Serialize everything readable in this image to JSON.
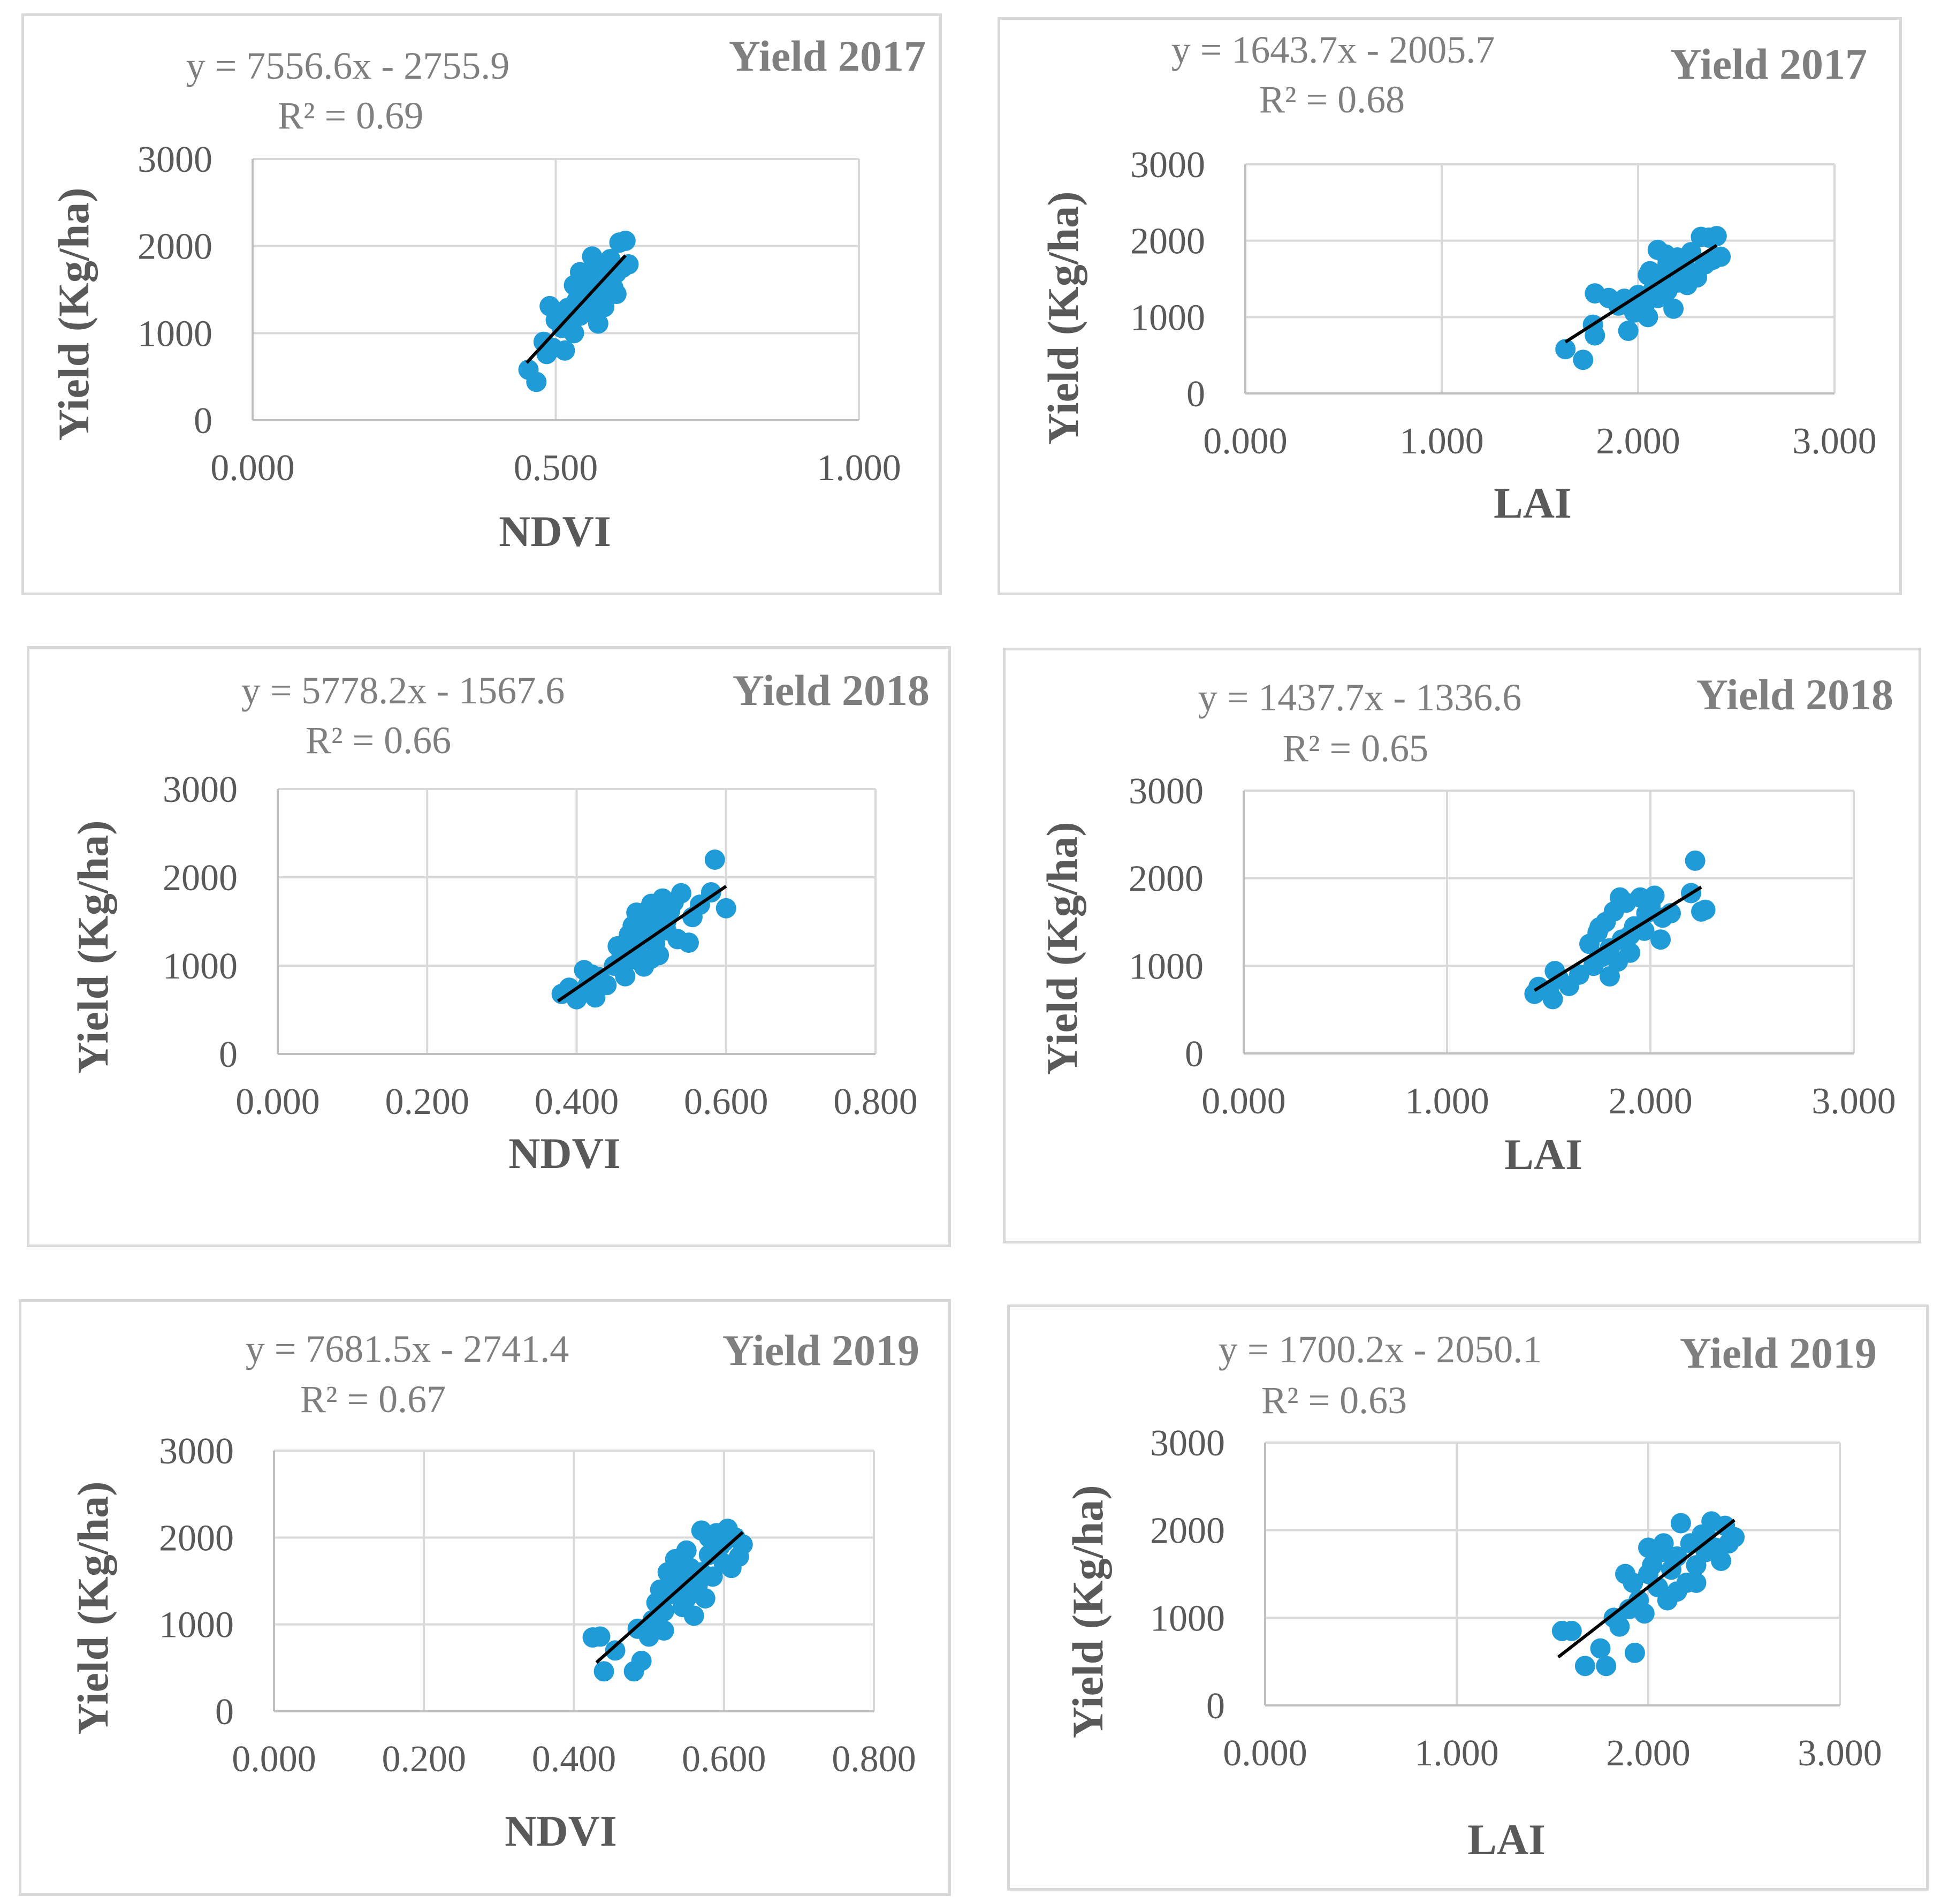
{
  "chart_data": [
    {
      "type": "scatter",
      "title": "Yield 2017",
      "xlabel": "NDVI",
      "ylabel": "Yield (Kg/ha)",
      "equation": "y = 7556.6x - 2755.9",
      "r2": "R² = 0.69",
      "slope": 7556.6,
      "intercept": -2755.9,
      "xlim": [
        0,
        1
      ],
      "ylim": [
        0,
        3000
      ],
      "xticks": [
        "0.000",
        "0.500",
        "1.000"
      ],
      "xtick_values": [
        0,
        0.5,
        1
      ],
      "yticks": [
        "0",
        "1000",
        "2000",
        "3000"
      ],
      "ytick_values": [
        0,
        1000,
        2000,
        3000
      ],
      "trend_x": [
        0.452,
        0.615
      ],
      "points": [
        [
          0.455,
          580
        ],
        [
          0.468,
          440
        ],
        [
          0.48,
          900
        ],
        [
          0.485,
          760
        ],
        [
          0.49,
          1310
        ],
        [
          0.495,
          830
        ],
        [
          0.5,
          1150
        ],
        [
          0.505,
          1240
        ],
        [
          0.51,
          1060
        ],
        [
          0.515,
          800
        ],
        [
          0.52,
          1290
        ],
        [
          0.525,
          1120
        ],
        [
          0.53,
          1000
        ],
        [
          0.535,
          1380
        ],
        [
          0.54,
          1200
        ],
        [
          0.545,
          1600
        ],
        [
          0.55,
          1480
        ],
        [
          0.555,
          1700
        ],
        [
          0.555,
          1350
        ],
        [
          0.56,
          1880
        ],
        [
          0.565,
          1560
        ],
        [
          0.57,
          1110
        ],
        [
          0.575,
          1780
        ],
        [
          0.58,
          1640
        ],
        [
          0.585,
          1420
        ],
        [
          0.59,
          1850
        ],
        [
          0.595,
          1520
        ],
        [
          0.6,
          1690
        ],
        [
          0.605,
          2040
        ],
        [
          0.61,
          1750
        ],
        [
          0.615,
          2060
        ],
        [
          0.62,
          1790
        ],
        [
          0.56,
          1250
        ],
        [
          0.575,
          1450
        ],
        [
          0.54,
          1700
        ],
        [
          0.53,
          1550
        ],
        [
          0.58,
          1300
        ],
        [
          0.6,
          1450
        ]
      ]
    },
    {
      "type": "scatter",
      "title": "Yield 2017",
      "xlabel": "LAI",
      "ylabel": "Yield (Kg/ha)",
      "equation": "y = 1643.7x - 2005.7",
      "r2": "R² = 0.68",
      "slope": 1643.7,
      "intercept": -2005.7,
      "xlim": [
        0,
        3
      ],
      "ylim": [
        0,
        3000
      ],
      "xticks": [
        "0.000",
        "1.000",
        "2.000",
        "3.000"
      ],
      "xtick_values": [
        0,
        1,
        2,
        3
      ],
      "yticks": [
        "0",
        "1000",
        "2000",
        "3000"
      ],
      "ytick_values": [
        0,
        1000,
        2000,
        3000
      ],
      "trend_x": [
        1.63,
        2.4
      ],
      "points": [
        [
          1.63,
          580
        ],
        [
          1.72,
          440
        ],
        [
          1.77,
          900
        ],
        [
          1.78,
          760
        ],
        [
          1.78,
          1310
        ],
        [
          1.85,
          1250
        ],
        [
          1.9,
          1150
        ],
        [
          1.93,
          1240
        ],
        [
          1.95,
          820
        ],
        [
          1.98,
          1060
        ],
        [
          2.0,
          1290
        ],
        [
          2.03,
          1120
        ],
        [
          2.05,
          1000
        ],
        [
          2.06,
          1600
        ],
        [
          2.08,
          1380
        ],
        [
          2.1,
          1880
        ],
        [
          2.12,
          1480
        ],
        [
          2.15,
          1700
        ],
        [
          2.15,
          1350
        ],
        [
          2.18,
          1110
        ],
        [
          2.2,
          1780
        ],
        [
          2.22,
          1640
        ],
        [
          2.25,
          1420
        ],
        [
          2.27,
          1850
        ],
        [
          2.3,
          1520
        ],
        [
          2.32,
          2050
        ],
        [
          2.34,
          1690
        ],
        [
          2.36,
          2040
        ],
        [
          2.38,
          1750
        ],
        [
          2.4,
          2060
        ],
        [
          2.42,
          1790
        ],
        [
          2.05,
          1550
        ],
        [
          2.14,
          1820
        ],
        [
          2.2,
          1450
        ],
        [
          2.26,
          1600
        ],
        [
          2.1,
          1250
        ]
      ]
    },
    {
      "type": "scatter",
      "title": "Yield 2018",
      "xlabel": "NDVI",
      "ylabel": "Yield (Kg/ha)",
      "equation": "y = 5778.2x - 1567.6",
      "r2": "R² = 0.66",
      "slope": 5778.2,
      "intercept": -1567.6,
      "xlim": [
        0,
        0.8
      ],
      "ylim": [
        0,
        3000
      ],
      "xticks": [
        "0.000",
        "0.200",
        "0.400",
        "0.600",
        "0.800"
      ],
      "xtick_values": [
        0,
        0.2,
        0.4,
        0.6,
        0.8
      ],
      "yticks": [
        "0",
        "1000",
        "2000",
        "3000"
      ],
      "ytick_values": [
        0,
        1000,
        2000,
        3000
      ],
      "trend_x": [
        0.375,
        0.6
      ],
      "points": [
        [
          0.38,
          680
        ],
        [
          0.39,
          750
        ],
        [
          0.4,
          620
        ],
        [
          0.405,
          700
        ],
        [
          0.41,
          950
        ],
        [
          0.415,
          780
        ],
        [
          0.42,
          900
        ],
        [
          0.425,
          640
        ],
        [
          0.43,
          870
        ],
        [
          0.44,
          780
        ],
        [
          0.45,
          1000
        ],
        [
          0.455,
          1220
        ],
        [
          0.46,
          1100
        ],
        [
          0.465,
          880
        ],
        [
          0.47,
          1350
        ],
        [
          0.47,
          1060
        ],
        [
          0.475,
          1450
        ],
        [
          0.48,
          1180
        ],
        [
          0.485,
          1300
        ],
        [
          0.49,
          1600
        ],
        [
          0.49,
          990
        ],
        [
          0.495,
          1500
        ],
        [
          0.5,
          1700
        ],
        [
          0.5,
          1080
        ],
        [
          0.505,
          1250
        ],
        [
          0.51,
          1560
        ],
        [
          0.515,
          1760
        ],
        [
          0.52,
          1400
        ],
        [
          0.525,
          1620
        ],
        [
          0.53,
          1720
        ],
        [
          0.535,
          1300
        ],
        [
          0.54,
          1820
        ],
        [
          0.55,
          1260
        ],
        [
          0.555,
          1550
        ],
        [
          0.565,
          1690
        ],
        [
          0.58,
          1830
        ],
        [
          0.585,
          2200
        ],
        [
          0.6,
          1650
        ],
        [
          0.51,
          1120
        ],
        [
          0.5,
          1380
        ],
        [
          0.48,
          1600
        ],
        [
          0.52,
          1500
        ]
      ]
    },
    {
      "type": "scatter",
      "title": "Yield 2018",
      "xlabel": "LAI",
      "ylabel": "Yield (Kg/ha)",
      "equation": "y = 1437.7x - 1336.6",
      "r2": "R² = 0.65",
      "slope": 1437.7,
      "intercept": -1336.6,
      "xlim": [
        0,
        3
      ],
      "ylim": [
        0,
        3000
      ],
      "xticks": [
        "0.000",
        "1.000",
        "2.000",
        "3.000"
      ],
      "xtick_values": [
        0,
        1,
        2,
        3
      ],
      "yticks": [
        "0",
        "1000",
        "2000",
        "3000"
      ],
      "ytick_values": [
        0,
        1000,
        2000,
        3000
      ],
      "trend_x": [
        1.43,
        2.25
      ],
      "points": [
        [
          1.43,
          680
        ],
        [
          1.45,
          760
        ],
        [
          1.5,
          720
        ],
        [
          1.52,
          620
        ],
        [
          1.53,
          940
        ],
        [
          1.55,
          850
        ],
        [
          1.6,
          770
        ],
        [
          1.65,
          900
        ],
        [
          1.7,
          1250
        ],
        [
          1.72,
          1000
        ],
        [
          1.74,
          1380
        ],
        [
          1.76,
          1100
        ],
        [
          1.78,
          1500
        ],
        [
          1.8,
          1200
        ],
        [
          1.8,
          880
        ],
        [
          1.82,
          1620
        ],
        [
          1.84,
          1050
        ],
        [
          1.86,
          1300
        ],
        [
          1.88,
          1720
        ],
        [
          1.9,
          1150
        ],
        [
          1.92,
          1450
        ],
        [
          1.95,
          1780
        ],
        [
          1.97,
          1400
        ],
        [
          2.0,
          1680
        ],
        [
          2.02,
          1800
        ],
        [
          2.05,
          1300
        ],
        [
          2.06,
          1550
        ],
        [
          2.1,
          1600
        ],
        [
          2.2,
          1830
        ],
        [
          2.22,
          2200
        ],
        [
          2.25,
          1620
        ],
        [
          2.27,
          1640
        ],
        [
          1.85,
          1780
        ],
        [
          1.9,
          1350
        ],
        [
          1.98,
          1600
        ],
        [
          1.75,
          1440
        ]
      ]
    },
    {
      "type": "scatter",
      "title": "Yield 2019",
      "xlabel": "NDVI",
      "ylabel": "Yield (Kg/ha)",
      "equation": "y = 7681.5x - 2741.4",
      "r2": "R² = 0.67",
      "slope": 7681.5,
      "intercept": -2741.4,
      "xlim": [
        0,
        0.8
      ],
      "ylim": [
        0,
        3000
      ],
      "xticks": [
        "0.000",
        "0.200",
        "0.400",
        "0.600",
        "0.800"
      ],
      "xtick_values": [
        0,
        0.2,
        0.4,
        0.6,
        0.8
      ],
      "yticks": [
        "0",
        "1000",
        "2000",
        "3000"
      ],
      "ytick_values": [
        0,
        1000,
        2000,
        3000
      ],
      "trend_x": [
        0.43,
        0.625
      ],
      "points": [
        [
          0.425,
          850
        ],
        [
          0.435,
          860
        ],
        [
          0.44,
          460
        ],
        [
          0.455,
          700
        ],
        [
          0.48,
          460
        ],
        [
          0.485,
          950
        ],
        [
          0.49,
          580
        ],
        [
          0.5,
          860
        ],
        [
          0.505,
          1050
        ],
        [
          0.51,
          1250
        ],
        [
          0.515,
          1400
        ],
        [
          0.52,
          1150
        ],
        [
          0.52,
          930
        ],
        [
          0.525,
          1600
        ],
        [
          0.53,
          1350
        ],
        [
          0.535,
          1750
        ],
        [
          0.54,
          1500
        ],
        [
          0.545,
          1200
        ],
        [
          0.55,
          1850
        ],
        [
          0.555,
          1650
        ],
        [
          0.56,
          1100
        ],
        [
          0.565,
          1450
        ],
        [
          0.57,
          2080
        ],
        [
          0.575,
          1300
        ],
        [
          0.58,
          1800
        ],
        [
          0.585,
          1550
        ],
        [
          0.59,
          2050
        ],
        [
          0.595,
          1900
        ],
        [
          0.6,
          1700
        ],
        [
          0.605,
          2100
        ],
        [
          0.61,
          1650
        ],
        [
          0.615,
          2000
        ],
        [
          0.62,
          1780
        ],
        [
          0.625,
          1920
        ],
        [
          0.55,
          1300
        ],
        [
          0.53,
          1550
        ],
        [
          0.57,
          1600
        ],
        [
          0.6,
          1950
        ],
        [
          0.58,
          2000
        ],
        [
          0.54,
          1700
        ],
        [
          0.56,
          1450
        ]
      ]
    },
    {
      "type": "scatter",
      "title": "Yield 2019",
      "xlabel": "LAI",
      "ylabel": "Yield (Kg/ha)",
      "equation": "y = 1700.2x - 2050.1",
      "r2": "R² = 0.63",
      "slope": 1700.2,
      "intercept": -2050.1,
      "xlim": [
        0,
        3
      ],
      "ylim": [
        0,
        3000
      ],
      "xticks": [
        "0.000",
        "1.000",
        "2.000",
        "3.000"
      ],
      "xtick_values": [
        0,
        1,
        2,
        3
      ],
      "yticks": [
        "0",
        "1000",
        "2000",
        "3000"
      ],
      "ytick_values": [
        0,
        1000,
        2000,
        3000
      ],
      "trend_x": [
        1.53,
        2.45
      ],
      "points": [
        [
          1.55,
          850
        ],
        [
          1.6,
          850
        ],
        [
          1.67,
          450
        ],
        [
          1.75,
          650
        ],
        [
          1.78,
          450
        ],
        [
          1.82,
          1000
        ],
        [
          1.85,
          900
        ],
        [
          1.88,
          1500
        ],
        [
          1.9,
          1100
        ],
        [
          1.92,
          1400
        ],
        [
          1.93,
          600
        ],
        [
          1.95,
          1200
        ],
        [
          1.98,
          1050
        ],
        [
          2.0,
          1800
        ],
        [
          2.02,
          1600
        ],
        [
          2.05,
          1350
        ],
        [
          2.07,
          1750
        ],
        [
          2.1,
          1200
        ],
        [
          2.12,
          1550
        ],
        [
          2.15,
          1700
        ],
        [
          2.17,
          2080
        ],
        [
          2.2,
          1400
        ],
        [
          2.22,
          1850
        ],
        [
          2.25,
          1600
        ],
        [
          2.28,
          1950
        ],
        [
          2.3,
          1750
        ],
        [
          2.33,
          2100
        ],
        [
          2.35,
          1800
        ],
        [
          2.38,
          1650
        ],
        [
          2.4,
          2050
        ],
        [
          2.42,
          1850
        ],
        [
          2.45,
          1920
        ],
        [
          2.08,
          1850
        ],
        [
          2.15,
          1300
        ],
        [
          2.25,
          1400
        ],
        [
          2.0,
          1500
        ],
        [
          2.3,
          1950
        ]
      ]
    }
  ]
}
